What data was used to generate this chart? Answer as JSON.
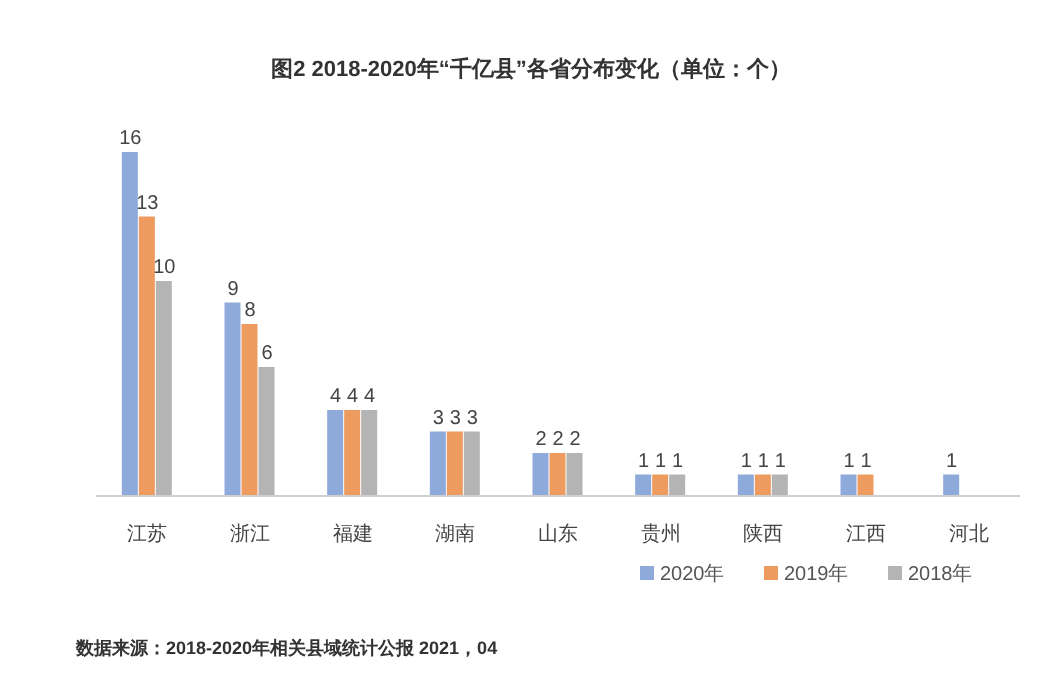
{
  "chart_data": {
    "type": "bar",
    "title": "图2 2018-2020年“千亿县”各省分布变化（单位：个）",
    "categories": [
      "江苏",
      "浙江",
      "福建",
      "湖南",
      "山东",
      "贵州",
      "陕西",
      "江西",
      "河北"
    ],
    "series": [
      {
        "name": "2020年",
        "color": "#8eaadb",
        "values": [
          16,
          9,
          4,
          3,
          2,
          1,
          1,
          1,
          1
        ]
      },
      {
        "name": "2019年",
        "color": "#ed9b5f",
        "values": [
          13,
          8,
          4,
          3,
          2,
          1,
          1,
          1,
          null
        ]
      },
      {
        "name": "2018年",
        "color": "#b4b4b4",
        "values": [
          10,
          6,
          4,
          3,
          2,
          1,
          1,
          null,
          null
        ]
      }
    ],
    "data_labels": true,
    "legend": "bottom right",
    "annotations": [
      "数据来源：2018-2020年相关县域统计公报 2021，04"
    ]
  }
}
